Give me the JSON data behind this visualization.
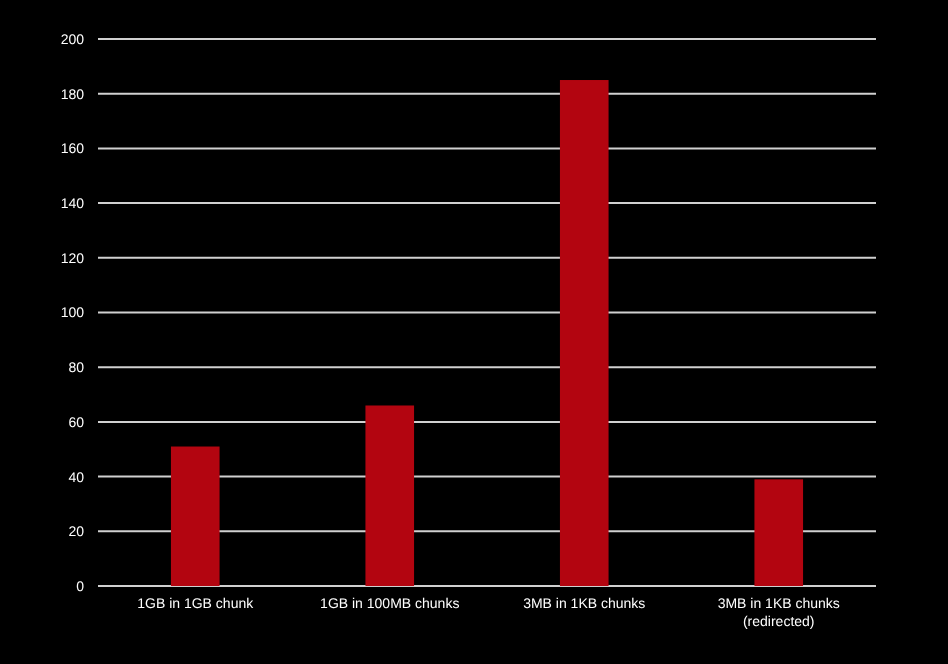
{
  "chart_data": {
    "type": "bar",
    "categories": [
      "1GB in 1GB chunk",
      "1GB in 100MB chunks",
      "3MB in 1KB chunks",
      "3MB in 1KB chunks\n(redirected)"
    ],
    "values": [
      51,
      66,
      185,
      39
    ],
    "color": "#b30510",
    "ylim": [
      0,
      200
    ],
    "yticks": [
      0,
      20,
      40,
      60,
      80,
      100,
      120,
      140,
      160,
      180,
      200
    ],
    "grid": "y"
  }
}
